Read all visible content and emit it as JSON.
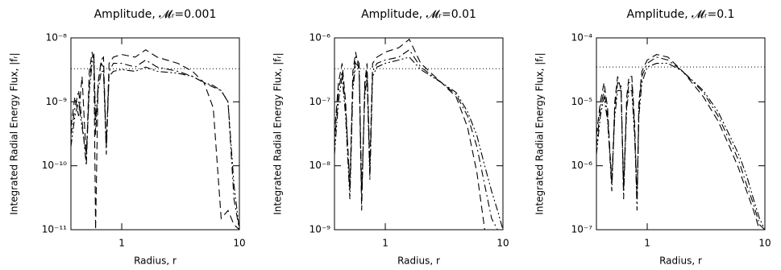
{
  "chart_data": [
    {
      "type": "line",
      "title": "Amplitude, 𝓜ᵣ=0.001",
      "xlabel": "Radius, r",
      "ylabel": "Integrated Radial Energy Flux, |fᵣ|",
      "xscale": "log",
      "yscale": "log",
      "xlim": [
        0.37,
        10
      ],
      "ylim": [
        1e-11,
        1e-08
      ],
      "xticks": [
        1,
        10
      ],
      "yticks": [
        {
          "value": 1e-11,
          "label": "10⁻¹¹"
        },
        {
          "value": 1e-10,
          "label": "10⁻¹⁰"
        },
        {
          "value": 1e-09,
          "label": "10⁻⁹"
        },
        {
          "value": 1e-08,
          "label": "10⁻⁸"
        }
      ],
      "reference_line": {
        "value": 3.3e-09,
        "style": "dotted",
        "color": "#000000"
      },
      "x": [
        0.37,
        0.4,
        0.43,
        0.46,
        0.5,
        0.53,
        0.56,
        0.58,
        0.6,
        0.63,
        0.67,
        0.7,
        0.74,
        0.78,
        0.85,
        1,
        1.3,
        1.6,
        2,
        3,
        4,
        5,
        6,
        7,
        8,
        9,
        10
      ],
      "series": [
        {
          "color": "#000000",
          "dash": "dashed",
          "values": [
            4e-10,
            1.2e-09,
            6e-10,
            2.5e-09,
            1.2e-10,
            3e-09,
            6e-09,
            4e-09,
            1e-11,
            2e-09,
            4.5e-09,
            5e-09,
            2e-10,
            4e-09,
            5e-09,
            5.5e-09,
            5e-09,
            6.5e-09,
            5e-09,
            4e-09,
            3e-09,
            2e-09,
            8e-10,
            1.5e-11,
            2e-11,
            1.2e-11,
            1e-11
          ]
        },
        {
          "color": "#000000",
          "dash": "dashdot",
          "values": [
            3e-10,
            8e-10,
            1.5e-09,
            5e-10,
            1e-10,
            2e-09,
            5e-09,
            5.5e-09,
            3e-10,
            2e-09,
            4e-09,
            3.5e-09,
            1.5e-10,
            3e-09,
            4e-09,
            4e-09,
            3.5e-09,
            4.5e-09,
            3.5e-09,
            3e-09,
            2.5e-09,
            2e-09,
            1.7e-09,
            1.5e-09,
            1e-09,
            3e-11,
            1e-11
          ]
        },
        {
          "color": "#000000",
          "dash": "dashdotdot",
          "values": [
            2e-10,
            6e-10,
            1e-09,
            4e-10,
            1.5e-10,
            1.5e-09,
            4e-09,
            5e-09,
            5e-10,
            1.5e-09,
            3e-09,
            3e-09,
            2e-10,
            2.5e-09,
            3e-09,
            3.2e-09,
            3e-09,
            3.5e-09,
            3e-09,
            2.8e-09,
            2.5e-09,
            2e-09,
            1.8e-09,
            1.5e-09,
            1e-09,
            5e-11,
            1e-11
          ]
        }
      ]
    },
    {
      "type": "line",
      "title": "Amplitude, 𝓜ᵣ=0.01",
      "xlabel": "Radius, r",
      "ylabel": "Integrated Radial Energy Flux, |fᵣ|",
      "xscale": "log",
      "yscale": "log",
      "xlim": [
        0.37,
        10
      ],
      "ylim": [
        1e-09,
        1e-06
      ],
      "xticks": [
        1,
        10
      ],
      "yticks": [
        {
          "value": 1e-09,
          "label": "10⁻⁹"
        },
        {
          "value": 1e-08,
          "label": "10⁻⁸"
        },
        {
          "value": 1e-07,
          "label": "10⁻⁷"
        },
        {
          "value": 1e-06,
          "label": "10⁻⁶"
        }
      ],
      "reference_line": {
        "value": 3.3e-07,
        "style": "dotted",
        "color": "#000000"
      },
      "x": [
        0.37,
        0.4,
        0.43,
        0.46,
        0.5,
        0.53,
        0.56,
        0.6,
        0.63,
        0.67,
        0.7,
        0.74,
        0.78,
        0.85,
        1,
        1.3,
        1.6,
        2,
        3,
        4,
        5,
        6,
        7,
        8,
        9,
        10
      ],
      "series": [
        {
          "color": "#000000",
          "dash": "dashed",
          "values": [
            3e-08,
            2e-07,
            4e-07,
            1e-07,
            4e-09,
            3e-07,
            6e-07,
            3e-07,
            2e-09,
            2e-07,
            4e-07,
            1e-08,
            4e-07,
            5e-07,
            6e-07,
            7e-07,
            9.5e-07,
            4e-07,
            2e-07,
            1.2e-07,
            4e-08,
            8e-09,
            1e-09,
            1e-09,
            1e-09,
            1e-09
          ]
        },
        {
          "color": "#000000",
          "dash": "dashdot",
          "values": [
            2e-08,
            1.5e-07,
            3e-07,
            8e-08,
            5e-09,
            2e-07,
            5e-07,
            4e-07,
            3e-09,
            1.5e-07,
            3e-07,
            8e-09,
            3e-07,
            4e-07,
            4.5e-07,
            5e-07,
            6.5e-07,
            3.5e-07,
            2e-07,
            1.3e-07,
            6e-08,
            2e-08,
            5e-09,
            1.5e-09,
            1e-09,
            1e-09
          ]
        },
        {
          "color": "#000000",
          "dash": "dashdotdot",
          "values": [
            1.5e-08,
            1e-07,
            2.5e-07,
            6e-08,
            3e-09,
            1.5e-07,
            4e-07,
            3.5e-07,
            4e-09,
            1.2e-07,
            2.5e-07,
            6e-09,
            2.5e-07,
            3.5e-07,
            4e-07,
            4.5e-07,
            5e-07,
            3.2e-07,
            2e-07,
            1.4e-07,
            7e-08,
            3e-08,
            1e-08,
            4e-09,
            2e-09,
            1e-09
          ]
        }
      ]
    },
    {
      "type": "line",
      "title": "Amplitude, 𝓜ᵣ=0.1",
      "xlabel": "Radius, r",
      "ylabel": "Integrated Radial Energy Flux, |fᵣ|",
      "xscale": "log",
      "yscale": "log",
      "xlim": [
        0.37,
        10
      ],
      "ylim": [
        1e-07,
        0.0001
      ],
      "xticks": [
        1,
        10
      ],
      "yticks": [
        {
          "value": 1e-07,
          "label": "10⁻⁷"
        },
        {
          "value": 1e-06,
          "label": "10⁻⁶"
        },
        {
          "value": 1e-05,
          "label": "10⁻⁵"
        },
        {
          "value": 0.0001,
          "label": "10⁻⁴"
        }
      ],
      "reference_line": {
        "value": 3.5e-05,
        "style": "dotted",
        "color": "#000000"
      },
      "x": [
        0.37,
        0.4,
        0.43,
        0.46,
        0.5,
        0.53,
        0.56,
        0.6,
        0.63,
        0.67,
        0.7,
        0.74,
        0.78,
        0.82,
        0.85,
        0.9,
        1,
        1.2,
        1.5,
        2,
        3,
        4,
        5,
        6,
        7,
        8,
        9,
        10
      ],
      "series": [
        {
          "color": "#000000",
          "dash": "dashed",
          "values": [
            3e-06,
            1e-05,
            2e-05,
            8e-06,
            5e-07,
            1e-05,
            2.5e-05,
            1.5e-05,
            4e-07,
            1.2e-05,
            2.5e-05,
            2.5e-05,
            5e-06,
            3e-07,
            1e-05,
            3e-05,
            4.5e-05,
            5.5e-05,
            5e-05,
            3e-05,
            1.2e-05,
            5e-06,
            2e-06,
            9e-07,
            4e-07,
            2e-07,
            1e-07,
            1e-07
          ]
        },
        {
          "color": "#000000",
          "dash": "dashdot",
          "values": [
            2e-06,
            8e-06,
            1.5e-05,
            6e-06,
            4e-07,
            8e-06,
            2e-05,
            1.8e-05,
            3e-07,
            1e-05,
            2e-05,
            2e-05,
            4e-06,
            2e-07,
            8e-06,
            2.5e-05,
            4e-05,
            5e-05,
            4.5e-05,
            3e-05,
            1.4e-05,
            6e-06,
            2.5e-06,
            1.2e-06,
            5e-07,
            2.5e-07,
            1.2e-07,
            1e-07
          ]
        },
        {
          "color": "#000000",
          "dash": "dashdotdot",
          "values": [
            1.5e-06,
            6e-06,
            1.2e-05,
            5e-06,
            6e-07,
            6e-06,
            1.5e-05,
            1.5e-05,
            5e-07,
            8e-06,
            1.5e-05,
            1.5e-05,
            3e-06,
            3e-07,
            6e-06,
            2e-05,
            3.5e-05,
            4e-05,
            4e-05,
            3e-05,
            1.5e-05,
            7e-06,
            3e-06,
            1.5e-06,
            7e-07,
            3e-07,
            1.5e-07,
            1e-07
          ]
        }
      ]
    }
  ]
}
